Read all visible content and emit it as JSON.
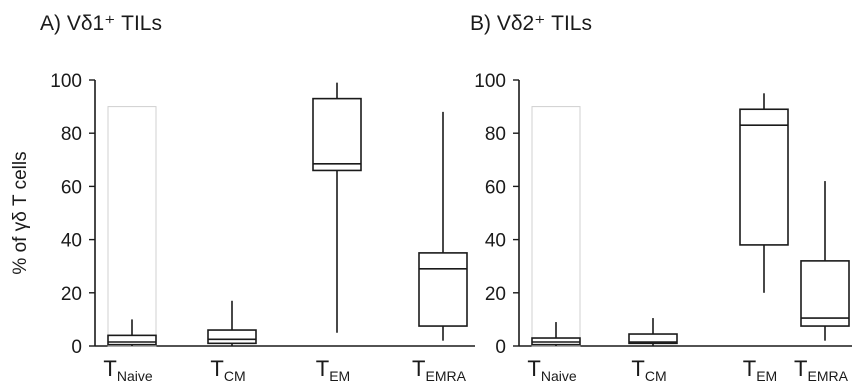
{
  "chart_data": [
    {
      "type": "box",
      "title": "A) Vδ1⁺ TILs",
      "ylabel": "% of γδ T cells",
      "ylim": [
        0,
        100
      ],
      "yticks": [
        0,
        20,
        40,
        60,
        80,
        100
      ],
      "categories": [
        {
          "main": "T",
          "sub": "Naive"
        },
        {
          "main": "T",
          "sub": "CM"
        },
        {
          "main": "T",
          "sub": "EM"
        },
        {
          "main": "T",
          "sub": "EMRA"
        }
      ],
      "boxes": [
        {
          "min": 0,
          "q1": 0.5,
          "median": 1.5,
          "q3": 4,
          "max": 10,
          "ghost_max": 90
        },
        {
          "min": 0,
          "q1": 1,
          "median": 2.5,
          "q3": 6,
          "max": 17
        },
        {
          "min": 5,
          "q1": 66,
          "median": 68.5,
          "q3": 93,
          "max": 99
        },
        {
          "min": 2,
          "q1": 7.5,
          "median": 29,
          "q3": 35,
          "max": 88
        }
      ]
    },
    {
      "type": "box",
      "title": "B) Vδ2⁺ TILs",
      "ylabel": "",
      "ylim": [
        0,
        100
      ],
      "yticks": [
        0,
        20,
        40,
        60,
        80,
        100
      ],
      "categories": [
        {
          "main": "T",
          "sub": "Naive"
        },
        {
          "main": "T",
          "sub": "CM"
        },
        {
          "main": "T",
          "sub": "EM"
        },
        {
          "main": "T",
          "sub": "EMRA"
        }
      ],
      "boxes": [
        {
          "min": 0,
          "q1": 0.5,
          "median": 1.5,
          "q3": 3,
          "max": 9,
          "ghost_max": 90
        },
        {
          "min": 0,
          "q1": 1,
          "median": 1.5,
          "q3": 4.5,
          "max": 10.5
        },
        {
          "min": 20,
          "q1": 38,
          "median": 83,
          "q3": 89,
          "max": 95
        },
        {
          "min": 2,
          "q1": 7.5,
          "median": 10.5,
          "q3": 32,
          "max": 62
        }
      ]
    }
  ]
}
